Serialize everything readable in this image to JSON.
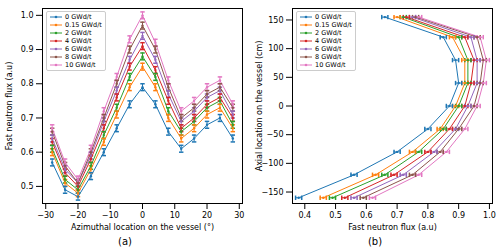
{
  "chart_data": [
    {
      "type": "line",
      "title": "(a)",
      "x_label": "Azimuthal location on the vessel (°)",
      "y_label": "Fast neutron flux (a.u)",
      "x": [
        -28,
        -24,
        -20,
        -16,
        -12,
        -8,
        -4,
        0,
        4,
        8,
        12,
        16,
        20,
        24,
        28
      ],
      "xlim": [
        -31,
        31
      ],
      "xticks": [
        -30,
        -20,
        -10,
        0,
        10,
        20,
        30
      ],
      "ylim": [
        0.45,
        1.02
      ],
      "yticks": [
        0.5,
        0.6,
        0.7,
        0.8,
        0.9,
        {
          "value": 1,
          "label": "1.0"
        }
      ],
      "legend": "upper left",
      "marker": "dot",
      "grid": false,
      "series": [
        {
          "name": "0 GWd/t",
          "color": "#1f77b4",
          "error": 0.01,
          "values": [
            0.57,
            0.49,
            0.47,
            0.53,
            0.6,
            0.67,
            0.74,
            0.79,
            0.74,
            0.66,
            0.61,
            0.64,
            0.68,
            0.7,
            0.64
          ]
        },
        {
          "name": "0.15 GWd/t",
          "color": "#ff7f0e",
          "error": 0.01,
          "values": [
            0.6,
            0.51,
            0.48,
            0.55,
            0.63,
            0.71,
            0.79,
            0.85,
            0.79,
            0.7,
            0.64,
            0.67,
            0.71,
            0.73,
            0.67
          ]
        },
        {
          "name": "2 GWd/t",
          "color": "#2ca02c",
          "error": 0.01,
          "values": [
            0.61,
            0.52,
            0.49,
            0.56,
            0.65,
            0.73,
            0.82,
            0.88,
            0.82,
            0.72,
            0.66,
            0.69,
            0.73,
            0.75,
            0.68
          ]
        },
        {
          "name": "4 GWd/t",
          "color": "#d62728",
          "error": 0.01,
          "values": [
            0.63,
            0.54,
            0.5,
            0.58,
            0.67,
            0.76,
            0.85,
            0.91,
            0.84,
            0.75,
            0.67,
            0.7,
            0.74,
            0.76,
            0.7
          ]
        },
        {
          "name": "6 GWd/t",
          "color": "#9467bd",
          "error": 0.01,
          "values": [
            0.64,
            0.55,
            0.51,
            0.59,
            0.69,
            0.78,
            0.87,
            0.94,
            0.87,
            0.77,
            0.69,
            0.72,
            0.76,
            0.78,
            0.71
          ]
        },
        {
          "name": "8 GWd/t",
          "color": "#8c564b",
          "error": 0.01,
          "values": [
            0.66,
            0.56,
            0.51,
            0.6,
            0.7,
            0.8,
            0.9,
            0.97,
            0.9,
            0.79,
            0.7,
            0.73,
            0.77,
            0.79,
            0.73
          ]
        },
        {
          "name": "10 GWd/t",
          "color": "#e377c2",
          "error": 0.01,
          "values": [
            0.67,
            0.57,
            0.52,
            0.61,
            0.72,
            0.82,
            0.93,
            1.0,
            0.92,
            0.81,
            0.72,
            0.75,
            0.79,
            0.81,
            0.74
          ]
        }
      ]
    },
    {
      "type": "line",
      "title": "(b)",
      "x_label": "Fast neutron flux (a.u)",
      "y_label": "Axial location on the vessel (cm)",
      "y": [
        -160,
        -120,
        -80,
        -40,
        0,
        40,
        80,
        120,
        155
      ],
      "xlim": [
        0.36,
        1.01
      ],
      "xticks": [
        0.4,
        0.5,
        0.6,
        0.7,
        0.8,
        0.9,
        {
          "value": 1,
          "label": "1.0"
        }
      ],
      "ylim": [
        -170,
        170
      ],
      "yticks": [
        -150,
        -100,
        -50,
        0,
        50,
        100,
        150
      ],
      "legend": "upper left",
      "marker": "dot",
      "grid": false,
      "series": [
        {
          "name": "0 GWd/t",
          "color": "#1f77b4",
          "error": 0.01,
          "values": [
            0.38,
            0.56,
            0.7,
            0.8,
            0.87,
            0.9,
            0.89,
            0.85,
            0.66
          ]
        },
        {
          "name": "0.15 GWd/t",
          "color": "#ff7f0e",
          "error": 0.01,
          "values": [
            0.46,
            0.63,
            0.75,
            0.84,
            0.89,
            0.92,
            0.92,
            0.88,
            0.7
          ]
        },
        {
          "name": "2 GWd/t",
          "color": "#2ca02c",
          "error": 0.01,
          "values": [
            0.49,
            0.66,
            0.77,
            0.85,
            0.9,
            0.93,
            0.93,
            0.9,
            0.72
          ]
        },
        {
          "name": "4 GWd/t",
          "color": "#d62728",
          "error": 0.01,
          "values": [
            0.53,
            0.69,
            0.8,
            0.87,
            0.92,
            0.94,
            0.95,
            0.92,
            0.73
          ]
        },
        {
          "name": "6 GWd/t",
          "color": "#9467bd",
          "error": 0.01,
          "values": [
            0.56,
            0.72,
            0.82,
            0.89,
            0.93,
            0.96,
            0.96,
            0.94,
            0.75
          ]
        },
        {
          "name": "8 GWd/t",
          "color": "#8c564b",
          "error": 0.01,
          "values": [
            0.59,
            0.75,
            0.84,
            0.9,
            0.95,
            0.97,
            0.98,
            0.96,
            0.76
          ]
        },
        {
          "name": "10 GWd/t",
          "color": "#e377c2",
          "error": 0.01,
          "values": [
            0.62,
            0.77,
            0.86,
            0.92,
            0.96,
            0.98,
            0.99,
            0.97,
            0.77
          ]
        }
      ]
    }
  ]
}
